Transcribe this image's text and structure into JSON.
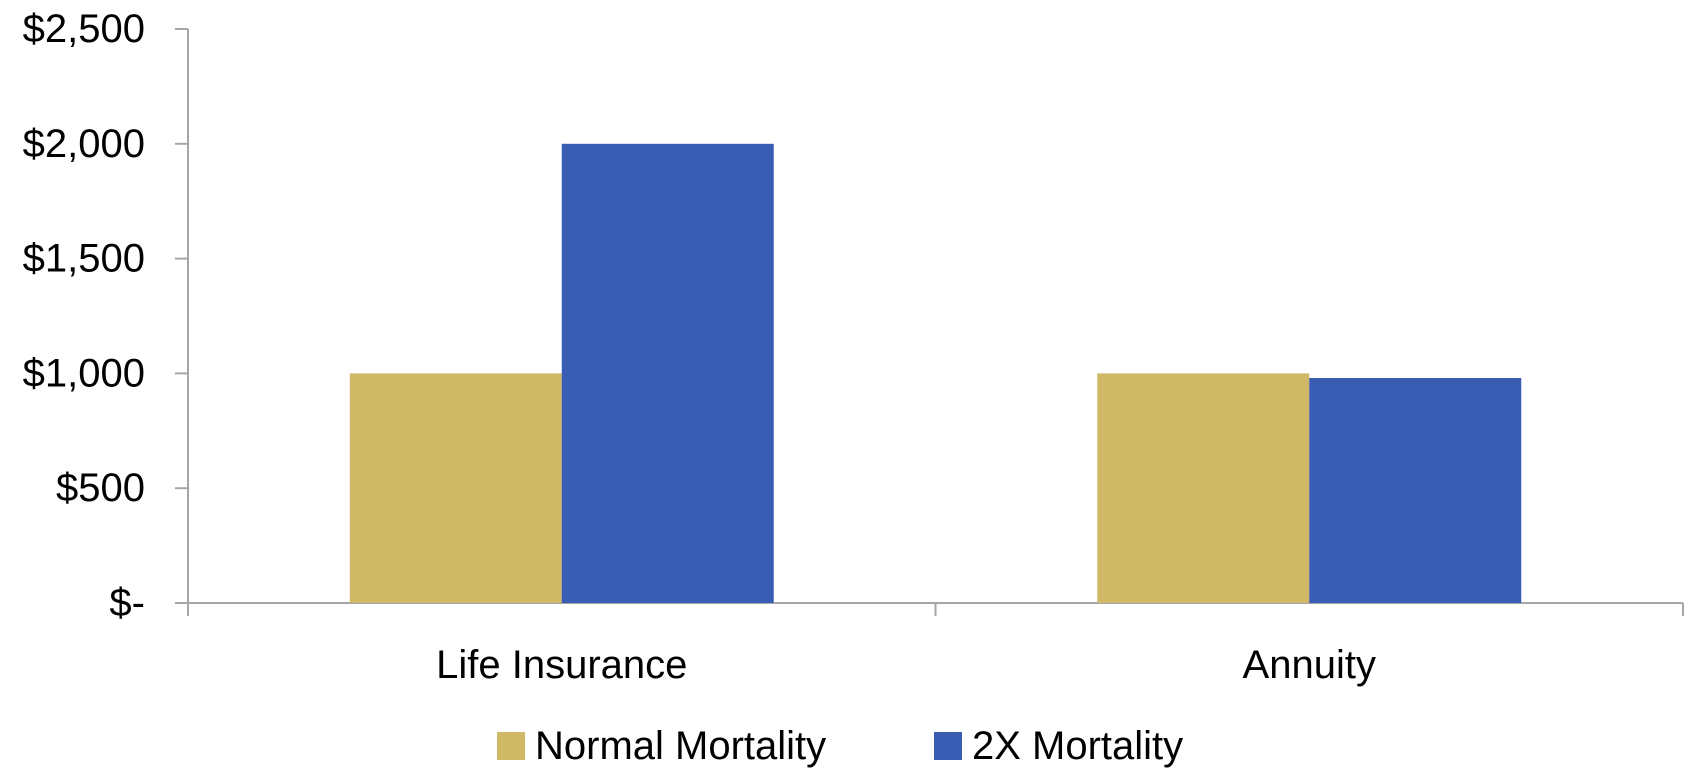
{
  "chart_data": {
    "type": "bar",
    "title": "",
    "xlabel": "",
    "ylabel": "",
    "categories": [
      "Life Insurance",
      "Annuity"
    ],
    "series": [
      {
        "name": "Normal Mortality",
        "values": [
          1000,
          1000
        ],
        "color": "#CFB966"
      },
      {
        "name": "2X Mortality",
        "values": [
          2000,
          980
        ],
        "color": "#385DB3"
      }
    ],
    "ylim": [
      0,
      2500
    ],
    "yticks": [
      0,
      500,
      1000,
      1500,
      2000,
      2500
    ],
    "ytick_labels": [
      "$-",
      "$500",
      "$1,000",
      "$1,500",
      "$2,000",
      "$2,500"
    ],
    "grid": false,
    "legend": {
      "position": "bottom"
    },
    "axis_color": "#A6A6A6"
  }
}
